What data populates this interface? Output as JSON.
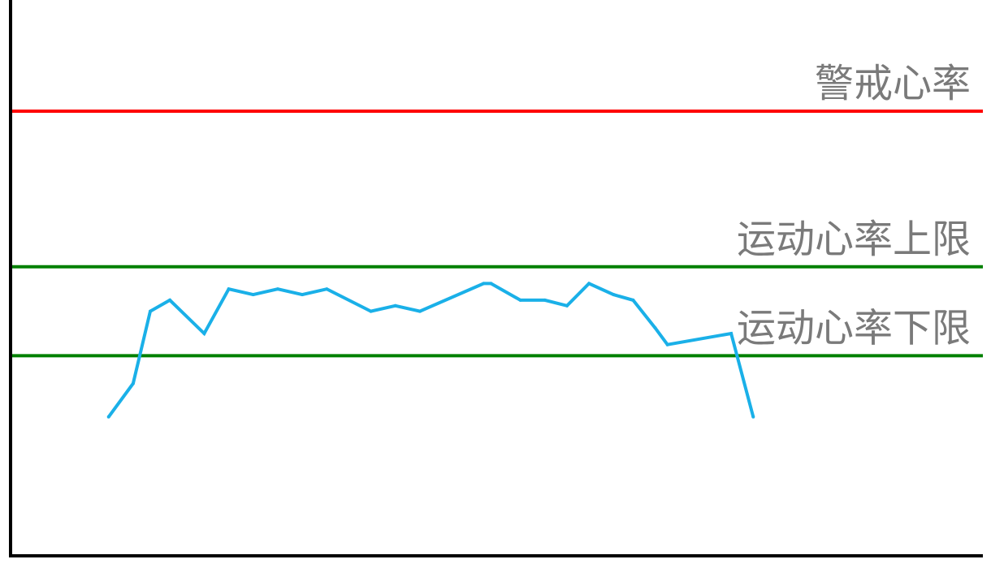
{
  "chart_data": {
    "type": "line",
    "title": "",
    "xlabel": "",
    "ylabel": "",
    "ylim": [
      0,
      100
    ],
    "xlim": [
      0,
      40
    ],
    "grid": false,
    "legend": "none",
    "reference_lines": [
      {
        "label": "警戒心率",
        "value": 80,
        "color": "#ff0000"
      },
      {
        "label": "运动心率上限",
        "value": 52,
        "color": "#008000"
      },
      {
        "label": "运动心率下限",
        "value": 36,
        "color": "#008000"
      }
    ],
    "series": [
      {
        "color": "#1ab0e8",
        "x": [
          4,
          5,
          5.7,
          6.5,
          7.9,
          8.9,
          9.9,
          10.9,
          11.9,
          12.9,
          14.7,
          15.7,
          16.7,
          19.3,
          19.6,
          20.8,
          21.8,
          22.7,
          23.6,
          24.6,
          25.4,
          26.3,
          26.8,
          29.4,
          30.3
        ],
        "values": [
          25,
          31,
          44,
          46,
          40,
          48,
          47,
          48,
          47,
          48,
          44,
          45,
          44,
          49,
          49,
          46,
          46,
          45,
          49,
          47,
          46,
          41,
          38,
          40,
          25
        ]
      }
    ]
  }
}
